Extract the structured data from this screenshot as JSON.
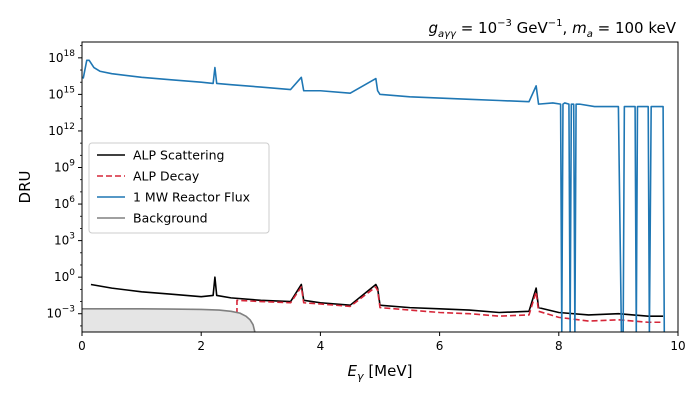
{
  "chart_data": {
    "type": "line",
    "title": "g_{aγγ} = 10^{-3} GeV^{-1}, m_a = 100 keV",
    "title_parts": {
      "g_symbol": "g",
      "g_sub": "aγγ",
      "g_eq": " = 10",
      "g_exp": "−3",
      "g_unit": " GeV",
      "g_unit_exp": "−1",
      "sep": ", ",
      "m_symbol": "m",
      "m_sub": "a",
      "m_eq": " = 100 keV"
    },
    "xlabel": "E_γ [MeV]",
    "xlabel_parts": {
      "symbol": "E",
      "sub": "γ",
      "unit": " [MeV]"
    },
    "ylabel": "DRU",
    "xlim": [
      0,
      10
    ],
    "ylim_log10": [
      -4.5,
      19.3
    ],
    "yscale": "log",
    "grid": false,
    "legend_position": "center-left",
    "x_ticks": [
      0,
      2,
      4,
      6,
      8,
      10
    ],
    "x_tick_labels": [
      "0",
      "2",
      "4",
      "6",
      "8",
      "10"
    ],
    "y_ticks_log10": [
      -3,
      0,
      3,
      6,
      9,
      12,
      15,
      18
    ],
    "y_tick_labels": [
      {
        "base": "10",
        "exp": "−3"
      },
      {
        "base": "10",
        "exp": "0"
      },
      {
        "base": "10",
        "exp": "3"
      },
      {
        "base": "10",
        "exp": "6"
      },
      {
        "base": "10",
        "exp": "9"
      },
      {
        "base": "10",
        "exp": "12"
      },
      {
        "base": "10",
        "exp": "15"
      },
      {
        "base": "10",
        "exp": "18"
      }
    ],
    "series": [
      {
        "name": "ALP Scattering",
        "color": "#000000",
        "style": "solid",
        "x": [
          0.15,
          0.5,
          1.0,
          1.5,
          2.0,
          2.2,
          2.23,
          2.26,
          2.5,
          3.0,
          3.5,
          3.68,
          3.72,
          4.0,
          4.5,
          4.93,
          4.96,
          5.0,
          5.5,
          6.0,
          6.5,
          7.0,
          7.5,
          7.62,
          7.66,
          8.0,
          8.5,
          9.0,
          9.5,
          9.75
        ],
        "y_log10": [
          -0.6,
          -0.9,
          -1.2,
          -1.4,
          -1.6,
          -1.5,
          0.0,
          -1.5,
          -1.7,
          -1.9,
          -2.0,
          -0.6,
          -1.9,
          -2.1,
          -2.3,
          -0.6,
          -0.9,
          -2.3,
          -2.5,
          -2.6,
          -2.7,
          -2.9,
          -2.8,
          -0.9,
          -2.5,
          -2.9,
          -3.1,
          -3.0,
          -3.2,
          -3.2
        ]
      },
      {
        "name": "ALP Decay",
        "color": "#d62739",
        "style": "dashed",
        "x": [
          2.6,
          2.6,
          3.0,
          3.5,
          3.68,
          3.72,
          4.0,
          4.5,
          4.93,
          4.96,
          5.0,
          5.5,
          6.0,
          6.5,
          7.0,
          7.5,
          7.62,
          7.66,
          8.0,
          8.5,
          9.0,
          9.5,
          9.75
        ],
        "y_log10": [
          -4.5,
          -1.9,
          -2.0,
          -2.1,
          -0.8,
          -2.1,
          -2.2,
          -2.4,
          -0.8,
          -1.1,
          -2.5,
          -2.7,
          -2.9,
          -3.0,
          -3.2,
          -3.1,
          -1.2,
          -2.8,
          -3.3,
          -3.6,
          -3.5,
          -3.7,
          -3.7
        ]
      },
      {
        "name": "1 MW Reactor Flux",
        "color": "#1f77b4",
        "style": "solid",
        "x": [
          0.02,
          0.08,
          0.12,
          0.2,
          0.3,
          0.5,
          1.0,
          1.5,
          2.0,
          2.2,
          2.23,
          2.26,
          2.5,
          3.0,
          3.5,
          3.68,
          3.72,
          4.0,
          4.5,
          4.93,
          4.96,
          5.0,
          5.5,
          6.0,
          6.5,
          7.0,
          7.5,
          7.62,
          7.66,
          7.9,
          8.03,
          8.05,
          8.07,
          8.1,
          8.17,
          8.19,
          8.21,
          8.25,
          8.27,
          8.29,
          8.35,
          8.6,
          9.0,
          9.05,
          9.08,
          9.1,
          9.2,
          9.28,
          9.3,
          9.32,
          9.36,
          9.5,
          9.52,
          9.55,
          9.58,
          9.7,
          9.75,
          9.77
        ],
        "y_log10": [
          16.3,
          17.8,
          17.8,
          17.2,
          16.9,
          16.7,
          16.4,
          16.2,
          16.0,
          15.9,
          17.2,
          15.9,
          15.8,
          15.6,
          15.4,
          16.4,
          15.3,
          15.3,
          15.1,
          16.3,
          15.3,
          15.0,
          14.8,
          14.7,
          14.6,
          14.5,
          14.4,
          15.7,
          14.2,
          14.3,
          14.2,
          -4.5,
          14.2,
          14.3,
          14.2,
          -4.5,
          14.2,
          14.2,
          -4.5,
          14.2,
          14.2,
          14.0,
          14.0,
          -4.5,
          -4.5,
          14.0,
          14.0,
          14.0,
          -4.5,
          14.0,
          14.0,
          14.0,
          -4.5,
          14.0,
          14.0,
          14.0,
          14.0,
          -4.5
        ]
      },
      {
        "name": "Background",
        "color": "#808080",
        "style": "solid",
        "fill": "#e5e5e5",
        "x": [
          0.0,
          0.5,
          1.0,
          1.5,
          2.0,
          2.3,
          2.5,
          2.65,
          2.75,
          2.82,
          2.87,
          2.9
        ],
        "y_log10": [
          -2.6,
          -2.6,
          -2.6,
          -2.62,
          -2.65,
          -2.7,
          -2.8,
          -2.95,
          -3.2,
          -3.5,
          -3.9,
          -4.5
        ]
      }
    ]
  }
}
